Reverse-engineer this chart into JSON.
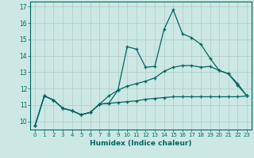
{
  "xlabel": "Humidex (Indice chaleur)",
  "bg_color": "#cce8e4",
  "grid_color": "#b0c8c4",
  "line_color": "#006660",
  "xlim": [
    -0.5,
    23.5
  ],
  "ylim": [
    9.5,
    17.3
  ],
  "yticks": [
    10,
    11,
    12,
    13,
    14,
    15,
    16,
    17
  ],
  "xticks": [
    0,
    1,
    2,
    3,
    4,
    5,
    6,
    7,
    8,
    9,
    10,
    11,
    12,
    13,
    14,
    15,
    16,
    17,
    18,
    19,
    20,
    21,
    22,
    23
  ],
  "hours": [
    0,
    1,
    2,
    3,
    4,
    5,
    6,
    7,
    8,
    9,
    10,
    11,
    12,
    13,
    14,
    15,
    16,
    17,
    18,
    19,
    20,
    21,
    22,
    23
  ],
  "max_line": [
    9.75,
    11.55,
    11.3,
    10.8,
    10.65,
    10.4,
    10.55,
    11.05,
    11.1,
    11.9,
    14.55,
    14.4,
    13.3,
    13.35,
    15.6,
    16.8,
    15.35,
    15.1,
    14.7,
    13.85,
    13.1,
    12.9,
    12.2,
    11.55
  ],
  "mid_line": [
    9.75,
    11.55,
    11.3,
    10.8,
    10.65,
    10.4,
    10.55,
    11.05,
    11.55,
    11.9,
    12.15,
    12.3,
    12.45,
    12.65,
    13.05,
    13.3,
    13.4,
    13.4,
    13.3,
    13.35,
    13.1,
    12.9,
    12.3,
    11.55
  ],
  "min_line": [
    9.75,
    11.55,
    11.3,
    10.8,
    10.65,
    10.4,
    10.55,
    11.05,
    11.1,
    11.15,
    11.2,
    11.25,
    11.35,
    11.4,
    11.45,
    11.5,
    11.5,
    11.5,
    11.5,
    11.5,
    11.5,
    11.5,
    11.5,
    11.55
  ]
}
